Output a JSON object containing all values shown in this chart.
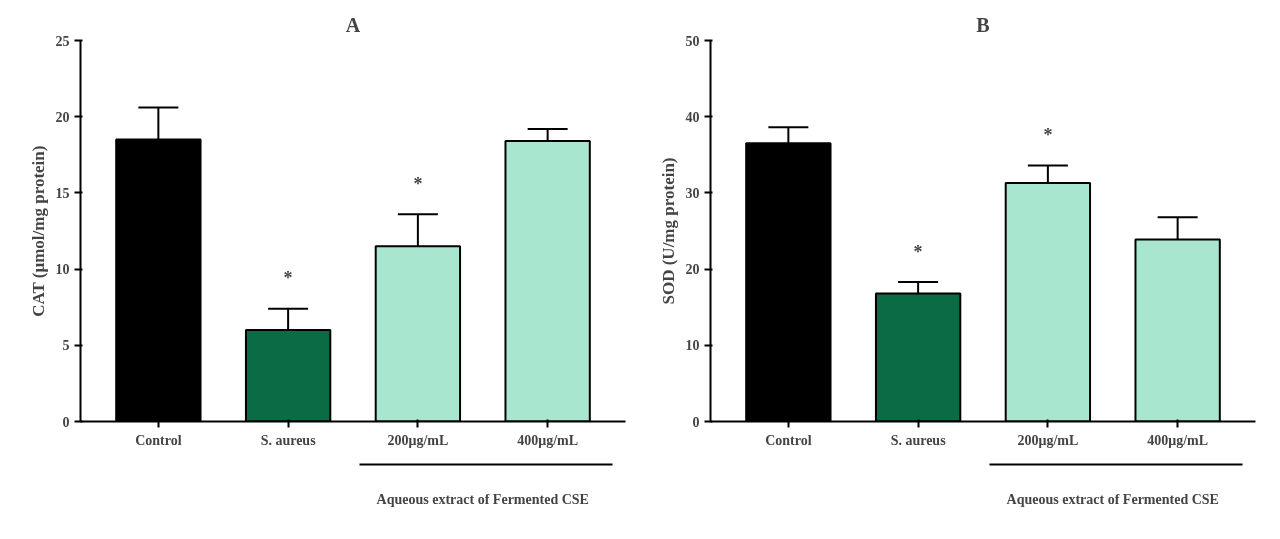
{
  "chart_data": [
    {
      "type": "bar",
      "title": "A",
      "ylabel": "CAT (μmol/mg protein)",
      "categories": [
        "Control",
        "S. aureus",
        "200μg/mL",
        "400μg/mL"
      ],
      "values": [
        18.5,
        6.0,
        11.5,
        18.4
      ],
      "colors": [
        "#000000",
        "#0b6b45",
        "#a8e6cf",
        "#a8e6cf"
      ],
      "errors": [
        [
          18.5,
          20.6
        ],
        [
          6.0,
          7.4
        ],
        [
          11.5,
          13.6
        ],
        [
          18.4,
          19.2
        ]
      ],
      "ylim": [
        0,
        25
      ],
      "yticks": [
        0,
        5,
        10,
        15,
        20,
        25
      ],
      "grid": false,
      "annotations": [
        {
          "text": "*",
          "x": "S. aureus",
          "y": 6.0
        },
        {
          "text": "*",
          "x": "200μg/mL",
          "y": 11.5
        },
        "Aqueous extract of Fermented CSE"
      ]
    },
    {
      "type": "bar",
      "title": "B",
      "ylabel": "SOD (U/mg protein)",
      "categories": [
        "Control",
        "S. aureus",
        "200μg/mL",
        "400μg/mL"
      ],
      "values": [
        36.5,
        16.8,
        31.3,
        23.9
      ],
      "colors": [
        "#000000",
        "#0b6b45",
        "#a8e6cf",
        "#a8e6cf"
      ],
      "errors": [
        [
          36.5,
          38.6
        ],
        [
          16.8,
          18.3
        ],
        [
          31.3,
          33.6
        ],
        [
          23.9,
          26.8
        ]
      ],
      "ylim": [
        0,
        50
      ],
      "yticks": [
        0,
        10,
        20,
        30,
        40,
        50
      ],
      "grid": false,
      "annotations": [
        {
          "text": "*",
          "x": "S. aureus",
          "y": 16.8
        },
        {
          "text": "*",
          "x": "200μg/mL",
          "y": 31.3
        },
        "Aqueous extract of Fermented CSE"
      ]
    }
  ]
}
